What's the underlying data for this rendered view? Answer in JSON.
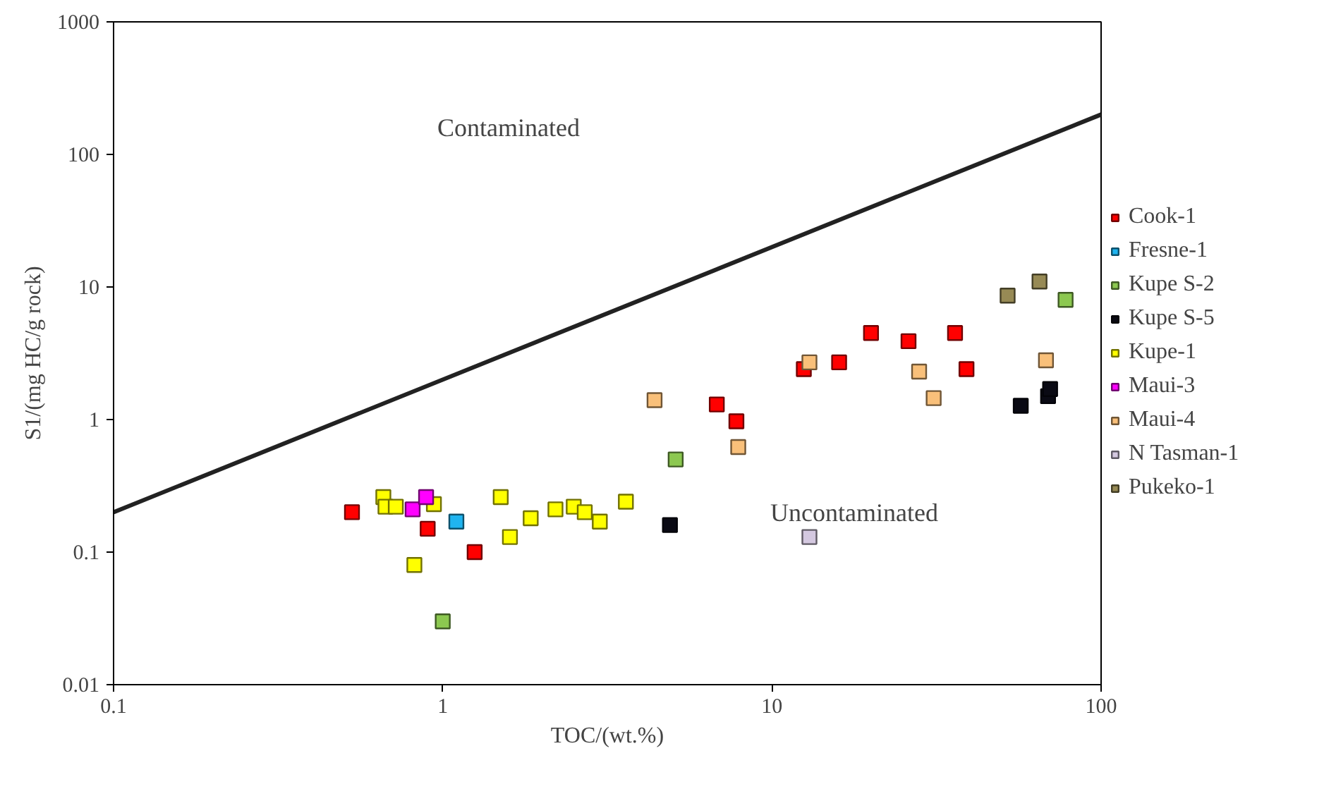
{
  "chart_data": {
    "type": "scatter",
    "xlabel": "TOC/(wt.%)",
    "ylabel": "S1/(mg HC/g rock)",
    "log": "xy",
    "xlim": [
      0.1,
      100
    ],
    "ylim": [
      0.01,
      1000
    ],
    "xticks": [
      0.1,
      1,
      10,
      100
    ],
    "yticks": [
      0.01,
      0.1,
      1,
      10,
      100,
      1000
    ],
    "grid": false,
    "legend": "right",
    "marker": "square",
    "annotations": [
      "Contaminated",
      "Uncontaminated"
    ],
    "series": [
      {
        "name": "Cook-1",
        "color": "#ff0000",
        "x": [
          0.53,
          0.9,
          1.25,
          6.8,
          7.8,
          12.5,
          16,
          20,
          26,
          36,
          39
        ],
        "values": [
          0.2,
          0.15,
          0.1,
          1.3,
          0.97,
          2.4,
          2.7,
          4.5,
          3.9,
          4.5,
          2.4
        ]
      },
      {
        "name": "Fresne-1",
        "color": "#1fb4f0",
        "x": [
          1.1
        ],
        "values": [
          0.17
        ]
      },
      {
        "name": "Kupe S-2",
        "color": "#8cc850",
        "x": [
          1.0,
          5.1,
          78
        ],
        "values": [
          0.03,
          0.5,
          8
        ]
      },
      {
        "name": "Kupe S-5",
        "color": "#0a0a14",
        "x": [
          4.9,
          57,
          69,
          70
        ],
        "values": [
          0.16,
          1.27,
          1.5,
          1.7
        ]
      },
      {
        "name": "Kupe-1",
        "color": "#ffff00",
        "x": [
          0.66,
          0.67,
          0.72,
          0.82,
          0.94,
          1.5,
          1.6,
          1.85,
          2.2,
          2.5,
          2.7,
          3.0,
          3.6
        ],
        "values": [
          0.26,
          0.22,
          0.22,
          0.08,
          0.23,
          0.26,
          0.13,
          0.18,
          0.21,
          0.22,
          0.2,
          0.17,
          0.24
        ]
      },
      {
        "name": "Maui-3",
        "color": "#ff00ff",
        "x": [
          0.81,
          0.89
        ],
        "values": [
          0.21,
          0.26
        ]
      },
      {
        "name": "Maui-4",
        "color": "#f9c07a",
        "x": [
          4.4,
          7.9,
          13,
          28,
          31,
          68
        ],
        "values": [
          1.4,
          0.62,
          2.7,
          2.3,
          1.45,
          2.8
        ]
      },
      {
        "name": "N Tasman-1",
        "color": "#d4c8e0",
        "x": [
          13
        ],
        "values": [
          0.13
        ]
      },
      {
        "name": "Pukeko-1",
        "color": "#978a55",
        "x": [
          52,
          65
        ],
        "values": [
          8.6,
          11
        ]
      },
      {
        "type": "line",
        "marker": "none",
        "color": "#222222",
        "x": [
          0.1,
          100
        ],
        "values": [
          0.2,
          200
        ]
      }
    ]
  }
}
